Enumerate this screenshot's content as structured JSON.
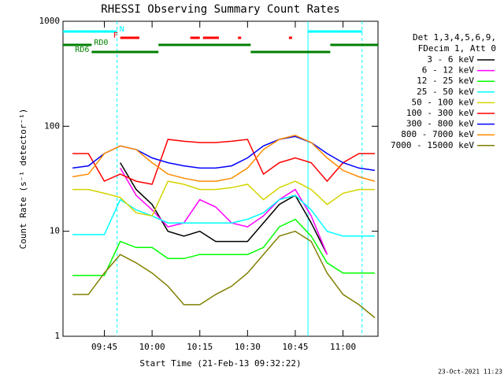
{
  "chart_data": {
    "type": "line",
    "title": "RHESSI Observing Summary Count Rates",
    "x_label": "Start Time (21-Feb-13 09:32:22)",
    "y_label": "Count Rate (s⁻¹ detector⁻¹)",
    "timestamp": "23-Oct-2021 11:23",
    "legend_header": [
      "Det 1,3,4,5,6,9,",
      "FDecim 1, Att 0"
    ],
    "log_y": true,
    "x": [
      "09:35",
      "09:40",
      "09:45",
      "09:50",
      "09:55",
      "10:00",
      "10:05",
      "10:10",
      "10:15",
      "10:20",
      "10:25",
      "10:30",
      "10:35",
      "10:40",
      "10:45",
      "10:50",
      "10:55",
      "11:00",
      "11:05",
      "11:10"
    ],
    "xlim": [
      "09:32",
      "11:11"
    ],
    "xticks": [
      "09:45",
      "10:00",
      "10:15",
      "10:30",
      "10:45",
      "11:00"
    ],
    "ylim": [
      1,
      1000
    ],
    "yticks": [
      1,
      10,
      100,
      1000
    ],
    "series": [
      {
        "name": "3 - 6 keV",
        "color": "#000000",
        "values": [
          null,
          null,
          null,
          45,
          25,
          18,
          10,
          9,
          10,
          8,
          8,
          8,
          12,
          18,
          22,
          12,
          6,
          null,
          null,
          null
        ]
      },
      {
        "name": "6 - 12 keV",
        "color": "#ff00ff",
        "values": [
          null,
          null,
          null,
          40,
          22,
          16,
          11,
          12,
          20,
          17,
          12,
          11,
          14,
          20,
          25,
          14,
          6,
          null,
          null,
          null
        ]
      },
      {
        "name": "12 - 25 keV",
        "color": "#00ff00",
        "values": [
          3.8,
          3.8,
          3.8,
          8,
          7,
          7,
          5.5,
          5.5,
          6,
          6,
          6,
          6,
          7,
          11,
          13,
          9,
          5,
          4,
          4,
          4
        ]
      },
      {
        "name": "25 - 50 keV",
        "color": "#00ffff",
        "values": [
          9.3,
          9.3,
          9.3,
          20,
          16,
          14,
          12,
          12,
          12,
          12,
          12,
          13,
          15,
          20,
          22,
          16,
          10,
          9,
          9,
          9
        ]
      },
      {
        "name": "50 - 100 keV",
        "color": "#d4d400",
        "values": [
          25,
          25,
          23,
          21,
          15,
          14,
          30,
          28,
          25,
          25,
          26,
          28,
          20,
          26,
          30,
          25,
          18,
          23,
          25,
          25
        ]
      },
      {
        "name": "100 - 300 keV",
        "color": "#ff0000",
        "values": [
          55,
          55,
          30,
          35,
          30,
          28,
          75,
          72,
          70,
          70,
          72,
          75,
          35,
          45,
          50,
          45,
          30,
          45,
          55,
          55
        ]
      },
      {
        "name": "300 - 800 keV",
        "color": "#0000ff",
        "values": [
          40,
          42,
          55,
          65,
          60,
          50,
          45,
          42,
          40,
          40,
          42,
          50,
          65,
          75,
          80,
          70,
          55,
          45,
          40,
          38
        ]
      },
      {
        "name": "800 - 7000 keV",
        "color": "#ff8c00",
        "values": [
          33,
          35,
          55,
          65,
          60,
          45,
          35,
          32,
          30,
          30,
          32,
          40,
          60,
          75,
          82,
          70,
          50,
          38,
          33,
          30
        ]
      },
      {
        "name": "7000 - 15000 keV",
        "color": "#808000",
        "values": [
          2.5,
          2.5,
          4,
          6,
          5,
          4,
          3,
          2,
          2,
          2.5,
          3,
          4,
          6,
          9,
          10,
          8,
          4,
          2.5,
          2,
          1.5
        ]
      }
    ],
    "flags": [
      {
        "label": "N",
        "color": "#00ffff",
        "intervals": [
          [
            "09:32",
            "09:49"
          ],
          [
            "10:49",
            "11:06"
          ]
        ]
      },
      {
        "label": "F",
        "color": "#ff0000",
        "intervals": [
          [
            "09:50",
            "09:56"
          ],
          [
            "10:12",
            "10:15"
          ],
          [
            "10:16",
            "10:21"
          ],
          [
            "10:27",
            "10:28"
          ],
          [
            "10:43",
            "10:44"
          ]
        ]
      },
      {
        "label": "RD0",
        "color": "#008000",
        "intervals": [
          [
            "09:32",
            "09:41"
          ],
          [
            "10:02",
            "10:31"
          ],
          [
            "10:56",
            "11:11"
          ]
        ]
      },
      {
        "label": "RD6",
        "color": "#008000",
        "intervals": [
          [
            "09:41",
            "10:02"
          ],
          [
            "10:31",
            "10:56"
          ]
        ]
      }
    ],
    "vlines": [
      {
        "time": "09:49",
        "style": "dashed",
        "color": "#00ffff"
      },
      {
        "time": "10:49",
        "style": "solid",
        "color": "#00ffff"
      },
      {
        "time": "11:06",
        "style": "dashed",
        "color": "#00ffff"
      }
    ]
  }
}
